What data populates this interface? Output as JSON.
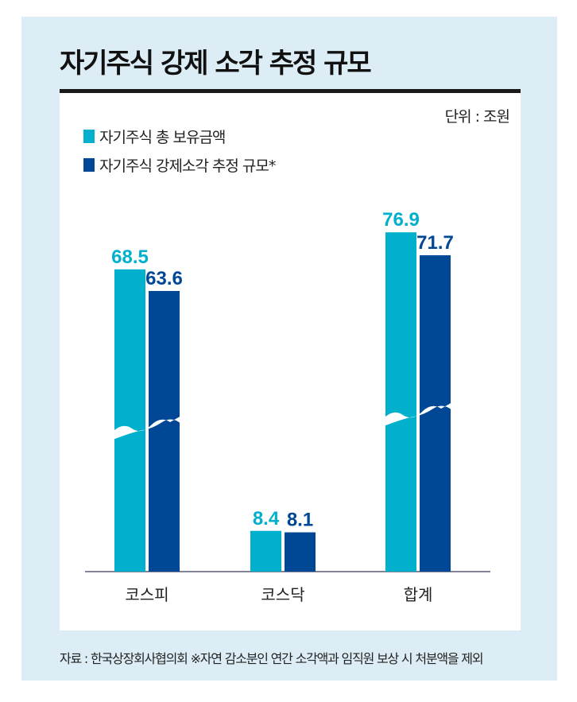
{
  "title": "자기주식 강제 소각 추정 규모",
  "unit": "단위 : 조원",
  "source": "자료 : 한국상장회사협의회  ※자연 감소분인 연간 소각액과 임직원 보상 시 처분액을 제외",
  "colors": {
    "total": "#00b0cc",
    "forced": "#004896"
  },
  "chart_data": {
    "type": "bar",
    "title": "자기주식 강제 소각 추정 규모",
    "categories": [
      "코스피",
      "코스닥",
      "합계"
    ],
    "series": [
      {
        "name": "자기주식 총 보유금액",
        "values": [
          68.5,
          8.4,
          76.9
        ]
      },
      {
        "name": "자기주식 강제소각 추정 규모*",
        "values": [
          63.6,
          8.1,
          71.7
        ]
      }
    ],
    "value_labels": [
      [
        "68.5",
        "8.4",
        "76.9"
      ],
      [
        "63.6",
        "8.1",
        "71.7"
      ]
    ],
    "axis_break": true,
    "ylim": [
      0,
      80
    ],
    "legend": "top-left"
  }
}
